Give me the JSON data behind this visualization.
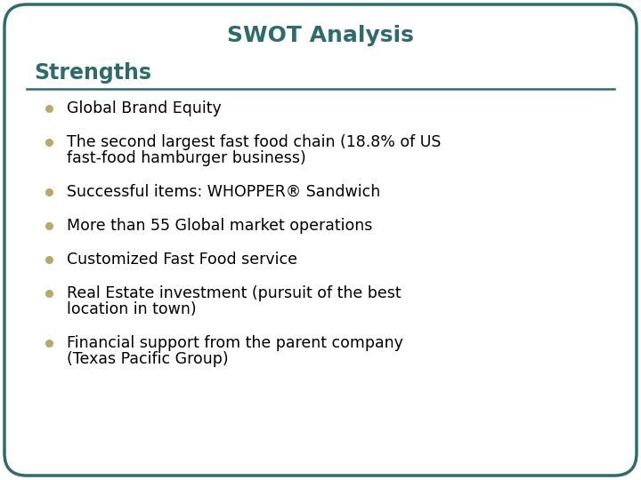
{
  "title": "SWOT Analysis",
  "title_color": "#2E6B6B",
  "title_fontsize": 18,
  "section_title": "Strengths",
  "section_title_color": "#2E6B6B",
  "section_title_fontsize": 17,
  "bullet_color": "#B8A96A",
  "text_color": "#000000",
  "text_fontsize": 12.5,
  "background_color": "#FFFFFF",
  "border_color": "#2E6B6B",
  "line_color": "#2E6B6B",
  "bullets": [
    [
      "Global Brand Equity"
    ],
    [
      "The second largest fast food chain (18.8% of US",
      "fast-food hamburger business)"
    ],
    [
      "Successful items: WHOPPER® Sandwich"
    ],
    [
      "More than 55 Global market operations"
    ],
    [
      "Customized Fast Food service"
    ],
    [
      "Real Estate investment (pursuit of the best",
      "location in town)"
    ],
    [
      "Financial support from the parent company",
      "(Texas Pacific Group)"
    ]
  ]
}
